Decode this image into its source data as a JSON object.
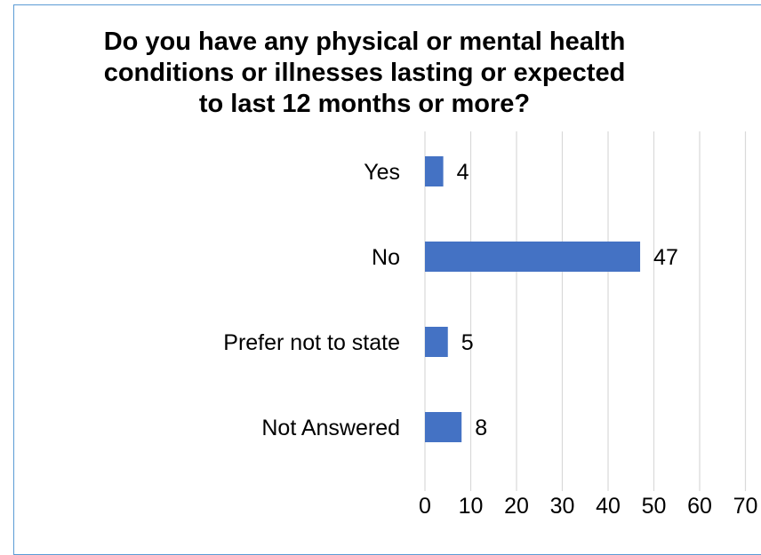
{
  "chart_data": {
    "type": "bar",
    "orientation": "horizontal",
    "title_lines": [
      "Do you have any physical or mental health",
      "conditions or illnesses lasting or expected",
      "to last 12 months or more?"
    ],
    "categories": [
      "Yes",
      "No",
      "Prefer not to state",
      "Not Answered"
    ],
    "values": [
      4,
      47,
      5,
      8
    ],
    "xlim": [
      0,
      70
    ],
    "x_ticks": [
      "0",
      "10",
      "20",
      "30",
      "40",
      "50",
      "60",
      "70"
    ],
    "grid": true,
    "legend": "none",
    "bar_color": "#4472c4",
    "gridline_color": "#d9d9d9"
  }
}
